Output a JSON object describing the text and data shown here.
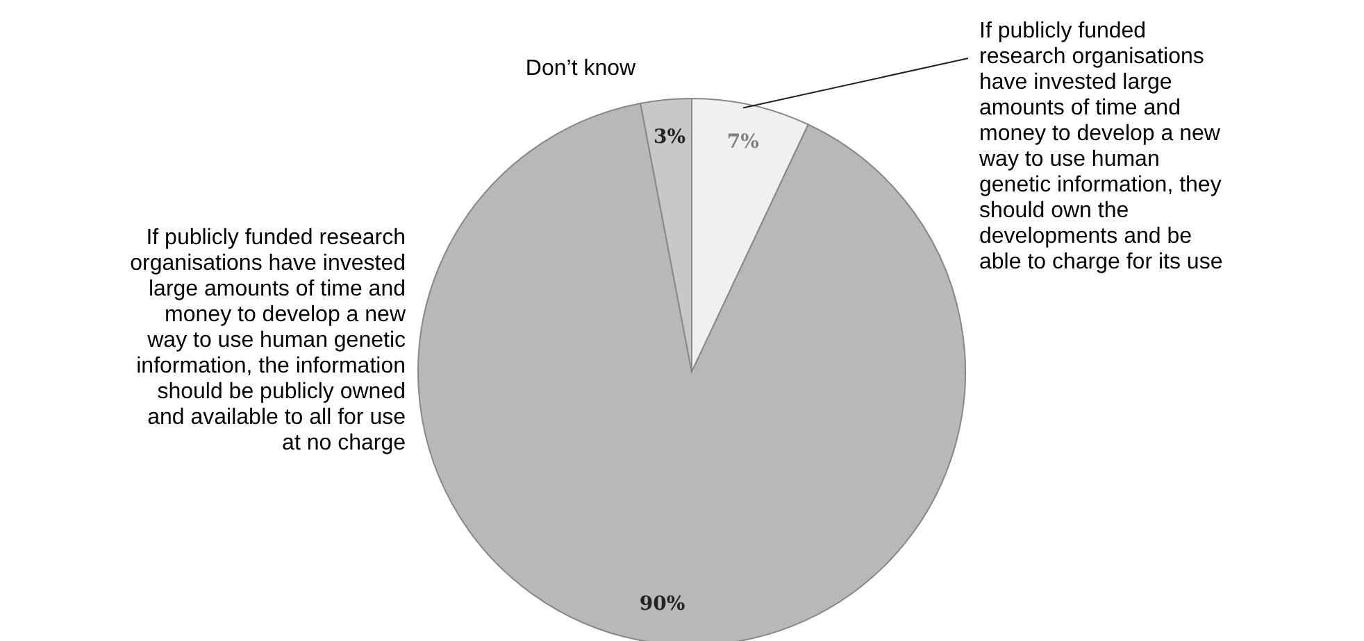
{
  "chart_data": {
    "type": "pie",
    "categories": [
      "If publicly funded research organisations have invested large amounts of time and money to develop a new way to use human genetic information, they should own the developments and be able to charge for its use",
      "If publicly funded research organisations have invested large amounts of time and money to develop a new way to use human genetic information, the information should be publicly owned and available to all for use at no charge",
      "Don’t know"
    ],
    "values": [
      7,
      90,
      3
    ],
    "colors": [
      "#f0f0f0",
      "#b8b8b8",
      "#c8c8c8"
    ],
    "value_labels": [
      "7%",
      "90%",
      "3%"
    ]
  }
}
